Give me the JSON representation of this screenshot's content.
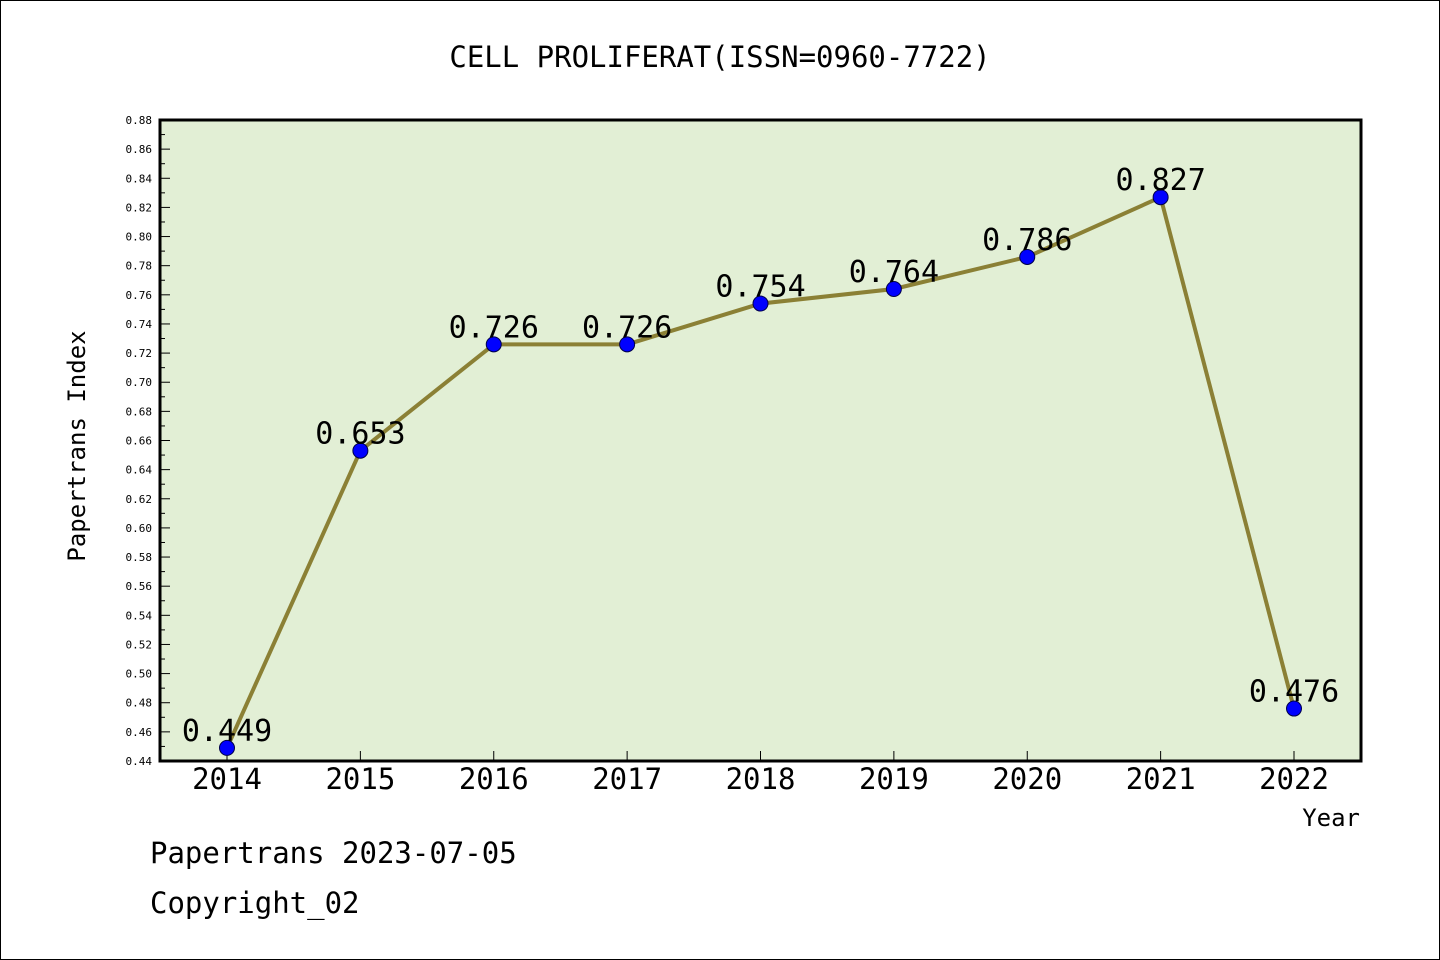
{
  "chart_data": {
    "type": "line",
    "title": "CELL PROLIFERAT(ISSN=0960-7722)",
    "xlabel": "Year",
    "ylabel": "Papertrans Index",
    "categories": [
      "2014",
      "2015",
      "2016",
      "2017",
      "2018",
      "2019",
      "2020",
      "2021",
      "2022"
    ],
    "series": [
      {
        "values": [
          0.449,
          0.653,
          0.726,
          0.726,
          0.754,
          0.764,
          0.786,
          0.827,
          0.476
        ],
        "labels": [
          "0.449",
          "0.653",
          "0.726",
          "0.726",
          "0.754",
          "0.764",
          "0.786",
          "0.827",
          "0.476"
        ]
      }
    ],
    "ylim": [
      0.44,
      0.88
    ],
    "ytick_step": 0.02,
    "ytick_labels": [
      "0.44",
      "0.46",
      "0.48",
      "0.50",
      "0.52",
      "0.54",
      "0.56",
      "0.58",
      "0.60",
      "0.62",
      "0.64",
      "0.66",
      "0.68",
      "0.70",
      "0.72",
      "0.74",
      "0.76",
      "0.78",
      "0.80",
      "0.82",
      "0.84",
      "0.86",
      "0.88"
    ],
    "grid": false,
    "legend": "none",
    "colors": {
      "plot_background": "#e2efd5",
      "line": "#8b8035",
      "marker": "#0000ff",
      "frame": "#000000"
    }
  },
  "footer": {
    "line1": "Papertrans 2023-07-05",
    "line2": "Copyright_02"
  }
}
